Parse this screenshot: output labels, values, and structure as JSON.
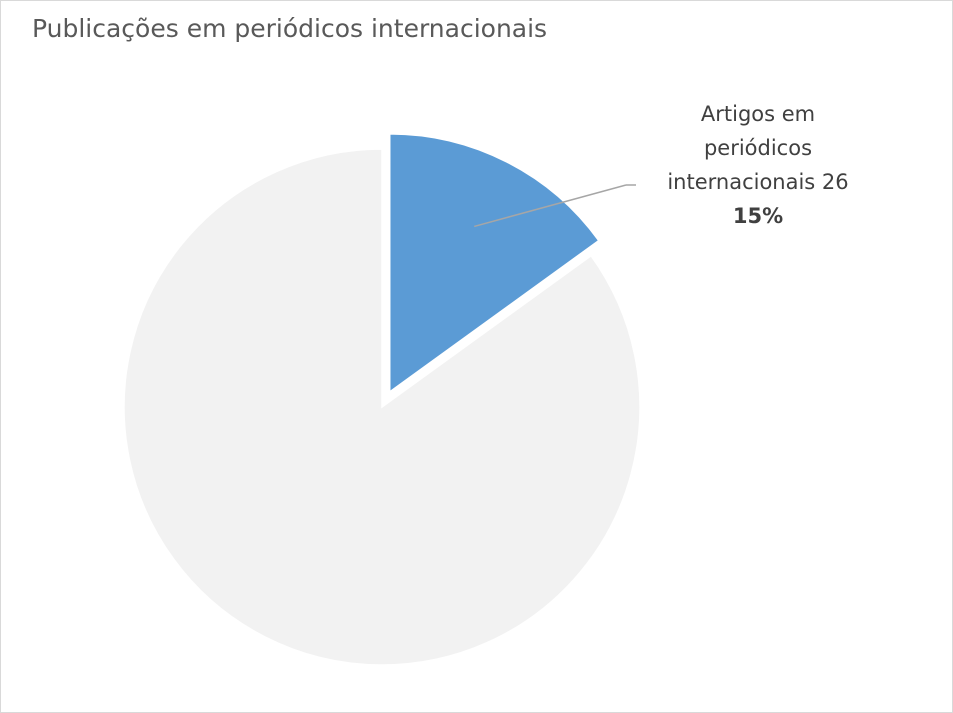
{
  "chart_data": {
    "type": "pie",
    "title": "Publicações em periódicos internacionais",
    "slices": [
      {
        "label": "Artigos em periódicos internacionais",
        "value": 26,
        "percent_label": "15%",
        "color": "#5b9bd5",
        "exploded": true
      },
      {
        "label": "",
        "value": 147,
        "color": "#f2f2f2",
        "exploded": false
      }
    ],
    "start_angle_deg": 0,
    "direction": "clockwise",
    "data_label": {
      "line1": "Artigos em",
      "line2": "periódicos",
      "line3": "internacionais 26",
      "percent": "15%"
    }
  },
  "colors": {
    "leader_line": "#a6a6a6",
    "border": "#d9d9d9"
  }
}
